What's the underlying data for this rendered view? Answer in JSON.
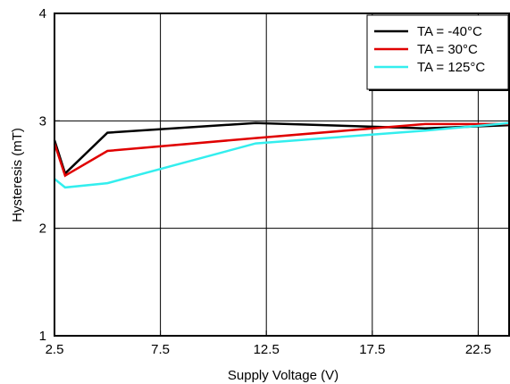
{
  "chart_data": {
    "type": "line",
    "title": "",
    "xlabel": "Supply Voltage (V)",
    "ylabel": "Hysteresis (mT)",
    "xlim": [
      2.5,
      24
    ],
    "ylim": [
      1,
      4
    ],
    "xticks": [
      2.5,
      7.5,
      12.5,
      17.5,
      22.5
    ],
    "xtick_labels": [
      "2.5",
      "7.5",
      "12.5",
      "17.5",
      "22.5"
    ],
    "yticks": [
      1,
      2,
      3,
      4
    ],
    "ytick_labels": [
      "1",
      "2",
      "3",
      "4"
    ],
    "grid": true,
    "legend_position": "top-right",
    "series": [
      {
        "name": "TA = -40°C",
        "color": "#000000",
        "x": [
          2.5,
          3,
          5,
          12,
          20,
          24
        ],
        "y": [
          2.82,
          2.51,
          2.89,
          2.98,
          2.93,
          2.96
        ]
      },
      {
        "name": "TA = 30°C",
        "color": "#e00000",
        "x": [
          2.5,
          3,
          5,
          12,
          20,
          24
        ],
        "y": [
          2.79,
          2.49,
          2.72,
          2.84,
          2.97,
          2.97
        ]
      },
      {
        "name": "TA = 125°C",
        "color": "#33eeee",
        "x": [
          2.5,
          3,
          5,
          12,
          20,
          24
        ],
        "y": [
          2.46,
          2.38,
          2.42,
          2.79,
          2.91,
          2.98
        ]
      }
    ]
  }
}
